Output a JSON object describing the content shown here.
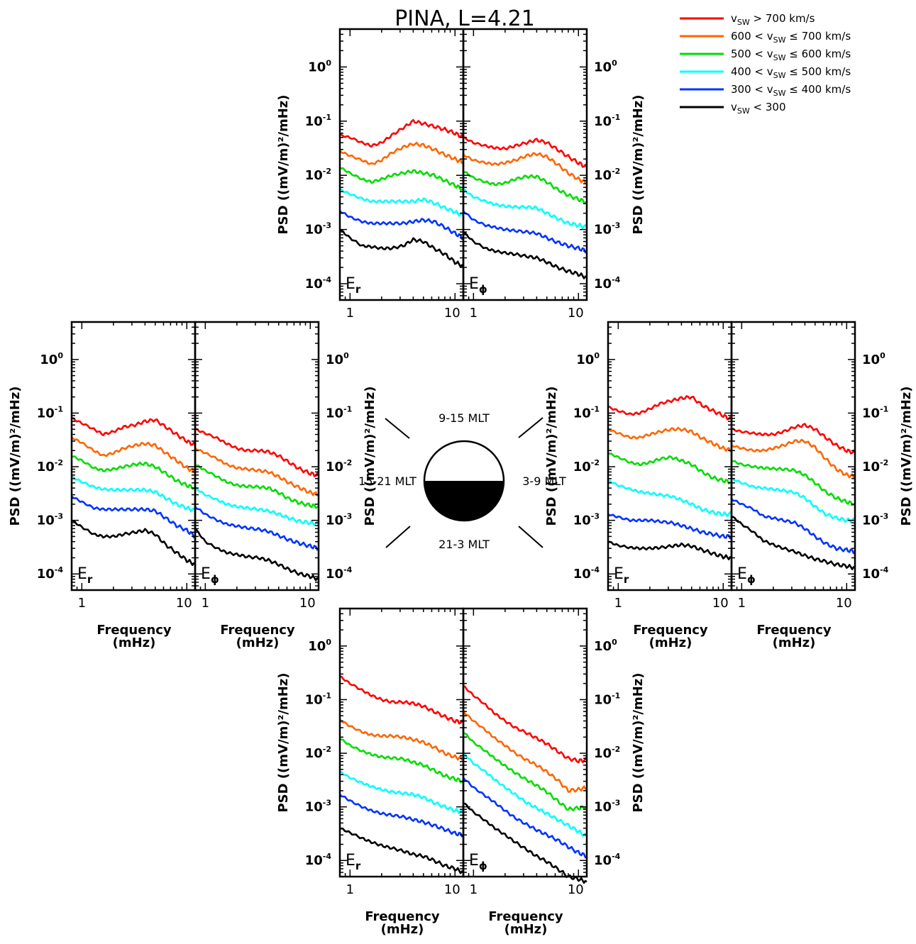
{
  "title": "PINA,  L=4.21",
  "colors": {
    "s700": "#ff0000",
    "s600": "#ff6600",
    "s500": "#00dd00",
    "s400": "#00ffff",
    "s300": "#0033ff",
    "s000": "#000000"
  },
  "legend": [
    {
      "key": "s700",
      "label": "vₛᵥ > 700 km/s",
      "prefix": "v",
      "sub": "SW",
      "rest": " > 700 km/s"
    },
    {
      "key": "s600",
      "prefix": "600 < v",
      "sub": "SW",
      "rest": " ≤ 700 km/s"
    },
    {
      "key": "s500",
      "prefix": "500 < v",
      "sub": "SW",
      "rest": " ≤ 600 km/s"
    },
    {
      "key": "s400",
      "prefix": "400 < v",
      "sub": "SW",
      "rest": " ≤ 500 km/s"
    },
    {
      "key": "s300",
      "prefix": "300 < v",
      "sub": "SW",
      "rest": " ≤ 400 km/s"
    },
    {
      "key": "s000",
      "prefix": " v",
      "sub": "SW",
      "rest": " < 300"
    }
  ],
  "mlt_labels": {
    "top": "9-15 MLT",
    "left": "15-21 MLT",
    "right": "3-9 MLT",
    "bottom": "21-3 MLT"
  },
  "component_labels": {
    "er_main": "E",
    "er_sub": "r",
    "ephi_main": "E",
    "ephi_sub": "ϕ"
  },
  "ylabel": "PSD ((mV/m)²/mHz)",
  "xlabel_line1": "Frequency",
  "xlabel_line2": "(mHz)",
  "chart_data": {
    "type": "line",
    "x_scale": "log",
    "y_scale": "log",
    "xlim": [
      0.8,
      12
    ],
    "ylim": [
      5e-05,
      5
    ],
    "xticks": [
      1,
      10
    ],
    "yticks": [
      {
        "value": 1,
        "label_base": "10",
        "label_exp": "0"
      },
      {
        "value": 0.1,
        "label_base": "10",
        "label_exp": "-1"
      },
      {
        "value": 0.01,
        "label_base": "10",
        "label_exp": "-2"
      },
      {
        "value": 0.001,
        "label_base": "10",
        "label_exp": "-3"
      },
      {
        "value": 0.0001,
        "label_base": "10",
        "label_exp": "-4"
      }
    ],
    "x": [
      0.8,
      1.0,
      1.3,
      1.6,
      2.0,
      2.5,
      3.2,
      4.0,
      5.0,
      6.3,
      8.0,
      10.0,
      12.0
    ],
    "series_keys": [
      "s700",
      "s600",
      "s500",
      "s400",
      "s300",
      "s000"
    ],
    "panels": [
      {
        "id": "top-er",
        "mlt": "9-15 MLT",
        "component": "Er",
        "series": [
          [
            0.055,
            0.05,
            0.04,
            0.035,
            0.04,
            0.055,
            0.075,
            0.1,
            0.09,
            0.08,
            0.07,
            0.06,
            0.05
          ],
          [
            0.028,
            0.023,
            0.019,
            0.016,
            0.019,
            0.026,
            0.033,
            0.038,
            0.036,
            0.03,
            0.024,
            0.02,
            0.017
          ],
          [
            0.014,
            0.011,
            0.0085,
            0.0075,
            0.0085,
            0.01,
            0.011,
            0.012,
            0.011,
            0.01,
            0.008,
            0.0065,
            0.0055
          ],
          [
            0.0055,
            0.0045,
            0.0037,
            0.0033,
            0.0033,
            0.0033,
            0.0033,
            0.0033,
            0.0036,
            0.0031,
            0.0025,
            0.0021,
            0.0018
          ],
          [
            0.0022,
            0.0017,
            0.0014,
            0.0013,
            0.0013,
            0.0013,
            0.0013,
            0.0014,
            0.0015,
            0.0014,
            0.0011,
            0.00085,
            0.0007
          ],
          [
            0.001,
            0.0007,
            0.0005,
            0.00048,
            0.00045,
            0.00045,
            0.0005,
            0.00065,
            0.0006,
            0.00045,
            0.00035,
            0.00025,
            0.00021
          ]
        ]
      },
      {
        "id": "top-ephi",
        "mlt": "9-15 MLT",
        "component": "Ephi",
        "series": [
          [
            0.05,
            0.04,
            0.035,
            0.032,
            0.031,
            0.035,
            0.04,
            0.045,
            0.04,
            0.03,
            0.022,
            0.017,
            0.014
          ],
          [
            0.024,
            0.019,
            0.017,
            0.016,
            0.017,
            0.019,
            0.023,
            0.025,
            0.022,
            0.016,
            0.011,
            0.0085,
            0.0072
          ],
          [
            0.012,
            0.009,
            0.0075,
            0.0068,
            0.0072,
            0.0085,
            0.0095,
            0.0095,
            0.0075,
            0.0055,
            0.0043,
            0.0036,
            0.0032
          ],
          [
            0.0055,
            0.004,
            0.0033,
            0.0029,
            0.0027,
            0.0026,
            0.0026,
            0.0025,
            0.002,
            0.0016,
            0.0013,
            0.0012,
            0.0011
          ],
          [
            0.0022,
            0.0015,
            0.0012,
            0.0011,
            0.001,
            0.00095,
            0.0009,
            0.00085,
            0.0007,
            0.00058,
            0.0005,
            0.00045,
            0.0004
          ],
          [
            0.0009,
            0.0006,
            0.00045,
            0.0004,
            0.00037,
            0.00035,
            0.00032,
            0.0003,
            0.00025,
            0.0002,
            0.00017,
            0.00015,
            0.00013
          ]
        ]
      },
      {
        "id": "left-er",
        "mlt": "15-21 MLT",
        "component": "Er",
        "series": [
          [
            0.08,
            0.065,
            0.05,
            0.04,
            0.045,
            0.055,
            0.06,
            0.07,
            0.075,
            0.055,
            0.04,
            0.03,
            0.025
          ],
          [
            0.035,
            0.028,
            0.02,
            0.016,
            0.018,
            0.022,
            0.025,
            0.027,
            0.025,
            0.018,
            0.013,
            0.0095,
            0.008
          ],
          [
            0.016,
            0.013,
            0.0095,
            0.0085,
            0.009,
            0.01,
            0.011,
            0.0115,
            0.01,
            0.0075,
            0.0055,
            0.0045,
            0.004
          ],
          [
            0.0065,
            0.0052,
            0.0042,
            0.0038,
            0.0037,
            0.0037,
            0.0037,
            0.0037,
            0.0034,
            0.0026,
            0.002,
            0.0017,
            0.0015
          ],
          [
            0.0028,
            0.0022,
            0.0017,
            0.0016,
            0.0016,
            0.0016,
            0.0016,
            0.0016,
            0.0015,
            0.0011,
            0.0008,
            0.00065,
            0.0005
          ],
          [
            0.001,
            0.00075,
            0.00055,
            0.0005,
            0.0005,
            0.00055,
            0.0006,
            0.00065,
            0.00055,
            0.00035,
            0.00025,
            0.00018,
            0.00015
          ]
        ]
      },
      {
        "id": "left-ephi",
        "mlt": "15-21 MLT",
        "component": "Ephi",
        "series": [
          [
            0.05,
            0.042,
            0.034,
            0.027,
            0.022,
            0.02,
            0.02,
            0.019,
            0.016,
            0.012,
            0.009,
            0.0075,
            0.0068
          ],
          [
            0.022,
            0.018,
            0.014,
            0.011,
            0.0095,
            0.009,
            0.0085,
            0.008,
            0.0065,
            0.005,
            0.004,
            0.0033,
            0.003
          ],
          [
            0.011,
            0.0085,
            0.0065,
            0.0052,
            0.0045,
            0.0043,
            0.0042,
            0.004,
            0.0033,
            0.0025,
            0.0021,
            0.0019,
            0.0018
          ],
          [
            0.004,
            0.003,
            0.0024,
            0.002,
            0.0018,
            0.0017,
            0.0016,
            0.0015,
            0.0013,
            0.0011,
            0.00095,
            0.0009,
            0.00085
          ],
          [
            0.0018,
            0.0013,
            0.001,
            0.00085,
            0.00078,
            0.00072,
            0.00068,
            0.00062,
            0.00052,
            0.00043,
            0.00037,
            0.00033,
            0.0003
          ],
          [
            0.0007,
            0.0004,
            0.0003,
            0.00025,
            0.00023,
            0.00021,
            0.0002,
            0.00018,
            0.00015,
            0.00012,
            0.0001,
            9e-05,
            8e-05
          ]
        ]
      },
      {
        "id": "right-er",
        "mlt": "3-9 MLT",
        "component": "Er",
        "series": [
          [
            0.13,
            0.11,
            0.095,
            0.1,
            0.12,
            0.15,
            0.17,
            0.19,
            0.2,
            0.14,
            0.11,
            0.09,
            0.075
          ],
          [
            0.05,
            0.042,
            0.035,
            0.035,
            0.04,
            0.045,
            0.05,
            0.05,
            0.045,
            0.034,
            0.027,
            0.022,
            0.02
          ],
          [
            0.018,
            0.015,
            0.012,
            0.011,
            0.012,
            0.014,
            0.015,
            0.013,
            0.011,
            0.008,
            0.0062,
            0.0055,
            0.0052
          ],
          [
            0.0055,
            0.0045,
            0.0038,
            0.0034,
            0.0032,
            0.003,
            0.0028,
            0.0024,
            0.002,
            0.0016,
            0.0014,
            0.0013,
            0.0013
          ],
          [
            0.0013,
            0.00115,
            0.001,
            0.001,
            0.001,
            0.00095,
            0.0009,
            0.0008,
            0.0007,
            0.0006,
            0.00055,
            0.0005,
            0.0005
          ],
          [
            0.0004,
            0.00034,
            0.00031,
            0.0003,
            0.0003,
            0.00031,
            0.00033,
            0.00035,
            0.00033,
            0.00028,
            0.00024,
            0.00021,
            0.0002
          ]
        ]
      },
      {
        "id": "right-ephi",
        "mlt": "3-9 MLT",
        "component": "Ephi",
        "series": [
          [
            0.05,
            0.045,
            0.042,
            0.04,
            0.04,
            0.045,
            0.055,
            0.06,
            0.05,
            0.035,
            0.025,
            0.02,
            0.018
          ],
          [
            0.025,
            0.022,
            0.02,
            0.02,
            0.022,
            0.025,
            0.03,
            0.03,
            0.023,
            0.014,
            0.009,
            0.007,
            0.0065
          ],
          [
            0.013,
            0.011,
            0.01,
            0.0095,
            0.0092,
            0.009,
            0.0085,
            0.007,
            0.005,
            0.0034,
            0.0026,
            0.0022,
            0.002
          ],
          [
            0.006,
            0.005,
            0.0042,
            0.004,
            0.0038,
            0.0036,
            0.0033,
            0.0026,
            0.0018,
            0.0013,
            0.0011,
            0.001,
            0.001
          ],
          [
            0.0025,
            0.002,
            0.0016,
            0.0012,
            0.0011,
            0.001,
            0.0009,
            0.0007,
            0.0005,
            0.00037,
            0.0003,
            0.00028,
            0.00026
          ],
          [
            0.0012,
            0.00085,
            0.0006,
            0.00042,
            0.00035,
            0.0003,
            0.00026,
            0.00022,
            0.00019,
            0.00017,
            0.00015,
            0.00014,
            0.00013
          ]
        ]
      },
      {
        "id": "bottom-er",
        "mlt": "21-3 MLT",
        "component": "Er",
        "series": [
          [
            0.27,
            0.2,
            0.15,
            0.12,
            0.1,
            0.09,
            0.09,
            0.085,
            0.075,
            0.06,
            0.048,
            0.04,
            0.037
          ],
          [
            0.042,
            0.032,
            0.025,
            0.022,
            0.021,
            0.021,
            0.02,
            0.018,
            0.016,
            0.013,
            0.01,
            0.0085,
            0.0078
          ],
          [
            0.019,
            0.014,
            0.011,
            0.0095,
            0.0085,
            0.0082,
            0.0078,
            0.0068,
            0.006,
            0.0048,
            0.0038,
            0.0033,
            0.003
          ],
          [
            0.0045,
            0.0035,
            0.0028,
            0.0024,
            0.0021,
            0.0019,
            0.0018,
            0.0017,
            0.0015,
            0.0012,
            0.001,
            0.00085,
            0.0008
          ],
          [
            0.0017,
            0.0013,
            0.001,
            0.00085,
            0.00075,
            0.0007,
            0.00065,
            0.00058,
            0.00052,
            0.00045,
            0.00038,
            0.00032,
            0.0003
          ],
          [
            0.0004,
            0.00033,
            0.00026,
            0.00022,
            0.00019,
            0.00017,
            0.00015,
            0.00013,
            0.00012,
            0.0001,
            8e-05,
            7e-05,
            6e-05
          ]
        ]
      },
      {
        "id": "bottom-ephi",
        "mlt": "21-3 MLT",
        "component": "Ephi",
        "series": [
          [
            0.18,
            0.12,
            0.08,
            0.055,
            0.04,
            0.03,
            0.024,
            0.019,
            0.015,
            0.011,
            0.008,
            0.0072,
            0.0075
          ],
          [
            0.06,
            0.04,
            0.027,
            0.019,
            0.014,
            0.01,
            0.0075,
            0.006,
            0.0045,
            0.0032,
            0.002,
            0.0021,
            0.0023
          ],
          [
            0.025,
            0.016,
            0.011,
            0.008,
            0.0058,
            0.0043,
            0.0032,
            0.0025,
            0.0019,
            0.0013,
            0.0009,
            0.00095,
            0.001
          ],
          [
            0.01,
            0.0065,
            0.0045,
            0.0032,
            0.0023,
            0.0017,
            0.0012,
            0.00095,
            0.00075,
            0.00058,
            0.00045,
            0.00035,
            0.00028
          ],
          [
            0.0035,
            0.0023,
            0.0016,
            0.0012,
            0.00085,
            0.00062,
            0.00047,
            0.00037,
            0.0003,
            0.00024,
            0.00018,
            0.00014,
            0.00012
          ],
          [
            0.0012,
            0.0008,
            0.00055,
            0.0004,
            0.0003,
            0.00022,
            0.00016,
            0.00012,
            9.5e-05,
            7e-05,
            5e-05,
            4.5e-05,
            4e-05
          ]
        ]
      }
    ]
  }
}
